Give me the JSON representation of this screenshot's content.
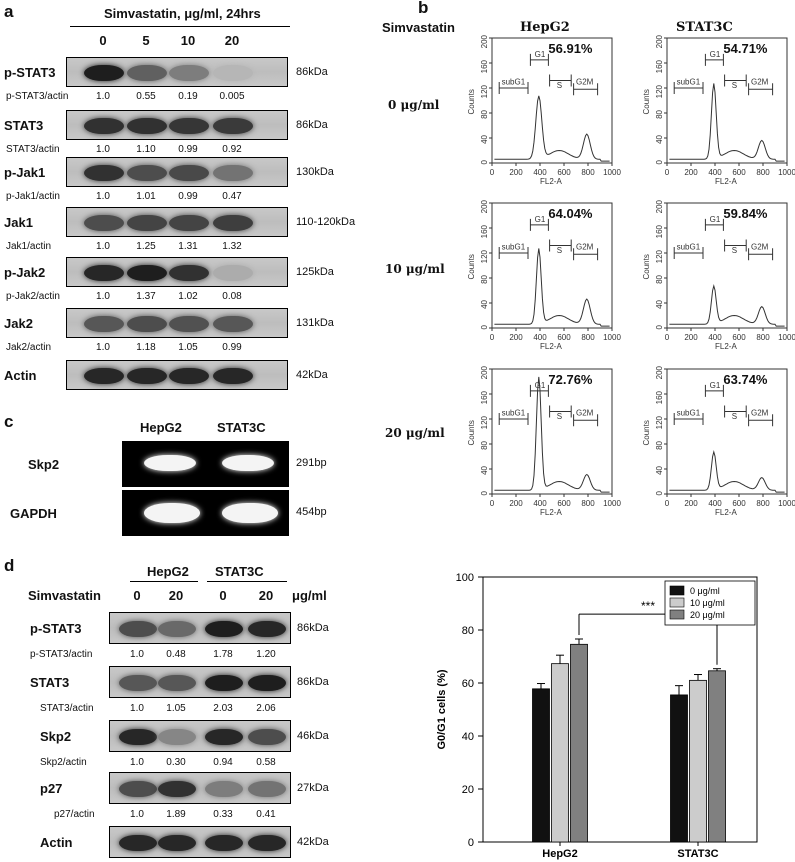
{
  "panels": {
    "a": "a",
    "b": "b",
    "c": "c",
    "d": "d"
  },
  "panel_a": {
    "header": "Simvastatin, μg/ml, 24hrs",
    "doses": [
      "0",
      "5",
      "10",
      "20"
    ],
    "rows": [
      {
        "name": "p-STAT3",
        "kda": "86kDa",
        "ratio_label": "p-STAT3/actin",
        "ratios": [
          "1.0",
          "0.55",
          "0.19",
          "0.005"
        ],
        "intensity": [
          0.95,
          0.6,
          0.45,
          0.15
        ]
      },
      {
        "name": "STAT3",
        "kda": "86kDa",
        "ratio_label": "STAT3/actin",
        "ratios": [
          "1.0",
          "1.10",
          "0.99",
          "0.92"
        ],
        "intensity": [
          0.85,
          0.85,
          0.82,
          0.8
        ]
      },
      {
        "name": "p-Jak1",
        "kda": "130kDa",
        "ratio_label": "p-Jak1/actin",
        "ratios": [
          "1.0",
          "1.01",
          "0.99",
          "0.47"
        ],
        "intensity": [
          0.85,
          0.7,
          0.72,
          0.5
        ]
      },
      {
        "name": "Jak1",
        "kda": "110-120kDa",
        "ratio_label": "Jak1/actin",
        "ratios": [
          "1.0",
          "1.25",
          "1.31",
          "1.32"
        ],
        "intensity": [
          0.7,
          0.75,
          0.75,
          0.78
        ]
      },
      {
        "name": "p-Jak2",
        "kda": "125kDa",
        "ratio_label": "p-Jak2/actin",
        "ratios": [
          "1.0",
          "1.37",
          "1.02",
          "0.08"
        ],
        "intensity": [
          0.9,
          0.95,
          0.85,
          0.2
        ]
      },
      {
        "name": "Jak2",
        "kda": "131kDa",
        "ratio_label": "Jak2/actin",
        "ratios": [
          "1.0",
          "1.18",
          "1.05",
          "0.99"
        ],
        "intensity": [
          0.65,
          0.7,
          0.68,
          0.65
        ]
      },
      {
        "name": "Actin",
        "kda": "42kDa",
        "ratio_label": "",
        "ratios": [],
        "intensity": [
          0.9,
          0.9,
          0.9,
          0.9
        ]
      }
    ]
  },
  "panel_b": {
    "treatment_label": "Simvastatin",
    "columns": [
      "HepG2",
      "STAT3C"
    ],
    "rows": [
      "0 μg/ml",
      "10 μg/ml",
      "20 μg/ml"
    ],
    "percentages": [
      [
        "56.91%",
        "54.71%"
      ],
      [
        "64.04%",
        "59.84%"
      ],
      [
        "72.76%",
        "63.74%"
      ]
    ],
    "y_axis_label": "Counts",
    "x_axis_label": "FL2-A",
    "y_ticks": [
      "0",
      "40",
      "80",
      "120",
      "160",
      "200"
    ],
    "x_ticks": [
      "0",
      "200",
      "400",
      "600",
      "800",
      "1000"
    ],
    "gates": {
      "subG1": "subG1",
      "G1": "G1",
      "S": "S",
      "G2M": "G2M"
    }
  },
  "panel_c": {
    "columns": [
      "HepG2",
      "STAT3C"
    ],
    "rows": [
      {
        "name": "Skp2",
        "size": "291bp"
      },
      {
        "name": "GAPDH",
        "size": "454bp"
      }
    ]
  },
  "panel_d": {
    "treatment_label": "Simvastatin",
    "unit": "μg/ml",
    "groups": [
      "HepG2",
      "STAT3C"
    ],
    "doses": [
      "0",
      "20",
      "0",
      "20"
    ],
    "rows": [
      {
        "name": "p-STAT3",
        "kda": "86kDa",
        "ratio_label": "p-STAT3/actin",
        "ratios": [
          "1.0",
          "0.48",
          "1.78",
          "1.20"
        ],
        "intensity": [
          0.7,
          0.55,
          0.95,
          0.9
        ]
      },
      {
        "name": "STAT3",
        "kda": "86kDa",
        "ratio_label": "STAT3/actin",
        "ratios": [
          "1.0",
          "1.05",
          "2.03",
          "2.06"
        ],
        "intensity": [
          0.65,
          0.65,
          0.95,
          0.95
        ]
      },
      {
        "name": "Skp2",
        "kda": "46kDa",
        "ratio_label": "Skp2/actin",
        "ratios": [
          "1.0",
          "0.30",
          "0.94",
          "0.58"
        ],
        "intensity": [
          0.9,
          0.4,
          0.9,
          0.7
        ]
      },
      {
        "name": "p27",
        "kda": "27kDa",
        "ratio_label": "p27/actin",
        "ratios": [
          "1.0",
          "1.89",
          "0.33",
          "0.41"
        ],
        "intensity": [
          0.7,
          0.85,
          0.45,
          0.5
        ]
      },
      {
        "name": "Actin",
        "kda": "42kDa",
        "ratio_label": "",
        "ratios": [],
        "intensity": [
          0.9,
          0.9,
          0.9,
          0.9
        ]
      }
    ]
  },
  "chart_data": {
    "type": "bar",
    "categories": [
      "HepG2",
      "STAT3C"
    ],
    "series": [
      {
        "name": "0 μg/ml",
        "values": [
          57.8,
          55.5
        ],
        "errors": [
          2.0,
          3.5
        ],
        "color": "#111111"
      },
      {
        "name": "10 μg/ml",
        "values": [
          67.3,
          61.0
        ],
        "errors": [
          3.2,
          2.2
        ],
        "color": "#cccccc"
      },
      {
        "name": "20 μg/ml",
        "values": [
          74.6,
          64.6
        ],
        "errors": [
          2.0,
          0.8
        ],
        "color": "#808080"
      }
    ],
    "ylabel": "G0/G1 cells (%)",
    "xlabel": "",
    "ylim": [
      0,
      100
    ],
    "yticks": [
      "0",
      "20",
      "40",
      "60",
      "80",
      "100"
    ],
    "significance": "***",
    "legend_position": "top-right"
  }
}
